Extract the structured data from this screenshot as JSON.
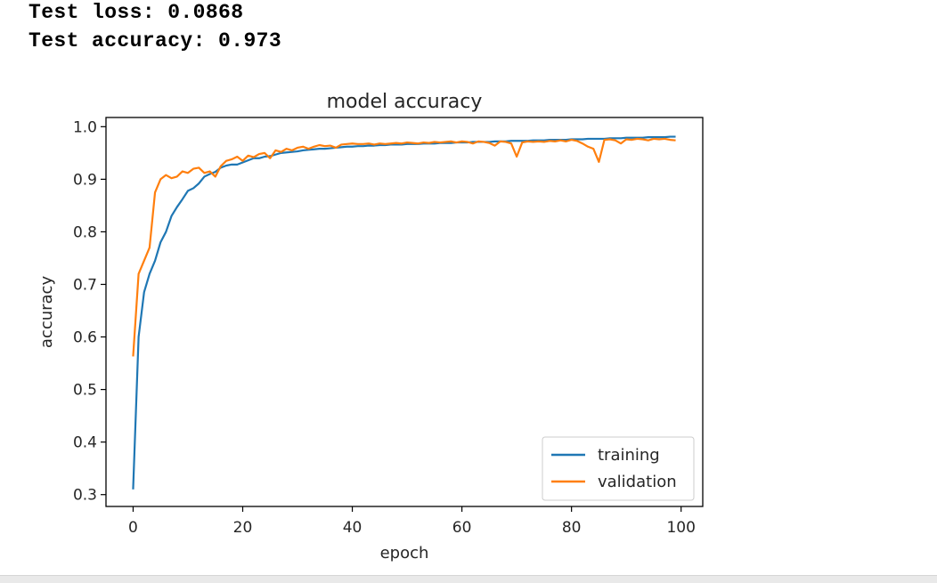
{
  "output": {
    "lines": [
      "Test loss: 0.0868",
      "Test accuracy: 0.973"
    ]
  },
  "chart_data": {
    "type": "line",
    "title": "model accuracy",
    "xlabel": "epoch",
    "ylabel": "accuracy",
    "xlim": [
      -4.95,
      103.95
    ],
    "ylim": [
      0.2775,
      1.0175
    ],
    "xticks": [
      0,
      20,
      40,
      60,
      80,
      100
    ],
    "yticks": [
      0.3,
      0.4,
      0.5,
      0.6,
      0.7,
      0.8,
      0.9,
      1.0
    ],
    "xtick_labels": [
      "0",
      "20",
      "40",
      "60",
      "80",
      "100"
    ],
    "ytick_labels": [
      "0.3",
      "0.4",
      "0.5",
      "0.6",
      "0.7",
      "0.8",
      "0.9",
      "1.0"
    ],
    "grid": false,
    "legend": "lower-right",
    "series": [
      {
        "name": "training",
        "color": "#1f77b4",
        "x": [
          0,
          1,
          2,
          3,
          4,
          5,
          6,
          7,
          8,
          9,
          10,
          11,
          12,
          13,
          14,
          15,
          16,
          17,
          18,
          19,
          20,
          21,
          22,
          23,
          24,
          25,
          26,
          27,
          28,
          29,
          30,
          31,
          32,
          33,
          34,
          35,
          36,
          37,
          38,
          39,
          40,
          41,
          42,
          43,
          44,
          45,
          46,
          47,
          48,
          49,
          50,
          51,
          52,
          53,
          54,
          55,
          56,
          57,
          58,
          59,
          60,
          61,
          62,
          63,
          64,
          65,
          66,
          67,
          68,
          69,
          70,
          71,
          72,
          73,
          74,
          75,
          76,
          77,
          78,
          79,
          80,
          81,
          82,
          83,
          84,
          85,
          86,
          87,
          88,
          89,
          90,
          91,
          92,
          93,
          94,
          95,
          96,
          97,
          98,
          99
        ],
        "y": [
          0.31,
          0.6,
          0.685,
          0.72,
          0.745,
          0.78,
          0.8,
          0.83,
          0.847,
          0.862,
          0.878,
          0.883,
          0.892,
          0.905,
          0.91,
          0.914,
          0.922,
          0.926,
          0.928,
          0.928,
          0.932,
          0.936,
          0.94,
          0.94,
          0.943,
          0.944,
          0.947,
          0.95,
          0.951,
          0.952,
          0.953,
          0.955,
          0.956,
          0.957,
          0.958,
          0.958,
          0.959,
          0.96,
          0.961,
          0.962,
          0.962,
          0.963,
          0.963,
          0.964,
          0.964,
          0.965,
          0.965,
          0.966,
          0.966,
          0.966,
          0.967,
          0.967,
          0.967,
          0.968,
          0.968,
          0.968,
          0.969,
          0.969,
          0.969,
          0.97,
          0.97,
          0.97,
          0.971,
          0.971,
          0.971,
          0.971,
          0.972,
          0.972,
          0.972,
          0.973,
          0.973,
          0.973,
          0.973,
          0.974,
          0.974,
          0.974,
          0.975,
          0.975,
          0.975,
          0.975,
          0.976,
          0.976,
          0.976,
          0.977,
          0.977,
          0.977,
          0.977,
          0.978,
          0.978,
          0.978,
          0.979,
          0.979,
          0.979,
          0.979,
          0.98,
          0.98,
          0.98,
          0.98,
          0.981,
          0.981
        ]
      },
      {
        "name": "validation",
        "color": "#ff7f0e",
        "x": [
          0,
          1,
          2,
          3,
          4,
          5,
          6,
          7,
          8,
          9,
          10,
          11,
          12,
          13,
          14,
          15,
          16,
          17,
          18,
          19,
          20,
          21,
          22,
          23,
          24,
          25,
          26,
          27,
          28,
          29,
          30,
          31,
          32,
          33,
          34,
          35,
          36,
          37,
          38,
          39,
          40,
          41,
          42,
          43,
          44,
          45,
          46,
          47,
          48,
          49,
          50,
          51,
          52,
          53,
          54,
          55,
          56,
          57,
          58,
          59,
          60,
          61,
          62,
          63,
          64,
          65,
          66,
          67,
          68,
          69,
          70,
          71,
          72,
          73,
          74,
          75,
          76,
          77,
          78,
          79,
          80,
          81,
          82,
          83,
          84,
          85,
          86,
          87,
          88,
          89,
          90,
          91,
          92,
          93,
          94,
          95,
          96,
          97,
          98,
          99
        ],
        "y": [
          0.563,
          0.72,
          0.745,
          0.77,
          0.875,
          0.9,
          0.908,
          0.902,
          0.905,
          0.915,
          0.912,
          0.92,
          0.922,
          0.912,
          0.915,
          0.905,
          0.925,
          0.935,
          0.938,
          0.943,
          0.935,
          0.945,
          0.942,
          0.948,
          0.95,
          0.94,
          0.955,
          0.952,
          0.958,
          0.955,
          0.96,
          0.962,
          0.958,
          0.962,
          0.965,
          0.963,
          0.964,
          0.96,
          0.966,
          0.967,
          0.968,
          0.967,
          0.967,
          0.968,
          0.966,
          0.968,
          0.967,
          0.968,
          0.969,
          0.968,
          0.97,
          0.969,
          0.968,
          0.97,
          0.969,
          0.971,
          0.97,
          0.971,
          0.972,
          0.97,
          0.972,
          0.971,
          0.968,
          0.972,
          0.971,
          0.969,
          0.964,
          0.972,
          0.971,
          0.968,
          0.943,
          0.97,
          0.972,
          0.971,
          0.972,
          0.971,
          0.973,
          0.972,
          0.974,
          0.972,
          0.975,
          0.973,
          0.968,
          0.962,
          0.958,
          0.933,
          0.975,
          0.976,
          0.974,
          0.968,
          0.976,
          0.975,
          0.977,
          0.976,
          0.974,
          0.977,
          0.976,
          0.977,
          0.975,
          0.974
        ]
      }
    ]
  }
}
